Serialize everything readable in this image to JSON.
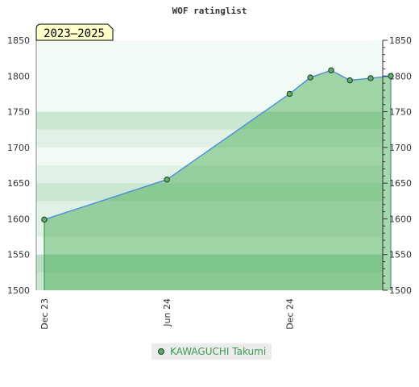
{
  "chart_data": {
    "type": "line",
    "title": "WOF ratinglist",
    "period_label": "2023–2025",
    "ylim": [
      1500,
      1850
    ],
    "y_ticks": [
      1500,
      1550,
      1600,
      1650,
      1700,
      1750,
      1800,
      1850
    ],
    "x_ticks": [
      "Dec 23",
      "Jun 24",
      "Dec 24"
    ],
    "x_tick_positions": [
      "2023-12-01",
      "2024-06-01",
      "2024-12-01"
    ],
    "xlim": [
      "2023-11-19",
      "2025-04-19"
    ],
    "grid": true,
    "legend_position": "bottom-center",
    "series": [
      {
        "name": "KAWAGUCHI Takumi",
        "x": [
          "2023-12-01",
          "2024-06-01",
          "2024-12-01",
          "2025-01-01",
          "2025-02-01",
          "2025-03-01",
          "2025-04-01",
          "2025-05-01"
        ],
        "y": [
          1599,
          1655,
          1775,
          1798,
          1808,
          1794,
          1797,
          1800
        ]
      }
    ],
    "colors": {
      "line": "#4a90d9",
      "area": "#3aa64a",
      "point": "#5cad6e",
      "band_dark": "#7cc492",
      "band_mid": "#9fd3ad",
      "band_light": "#c6e6cf",
      "band_pale": "#e8f5ec"
    }
  }
}
